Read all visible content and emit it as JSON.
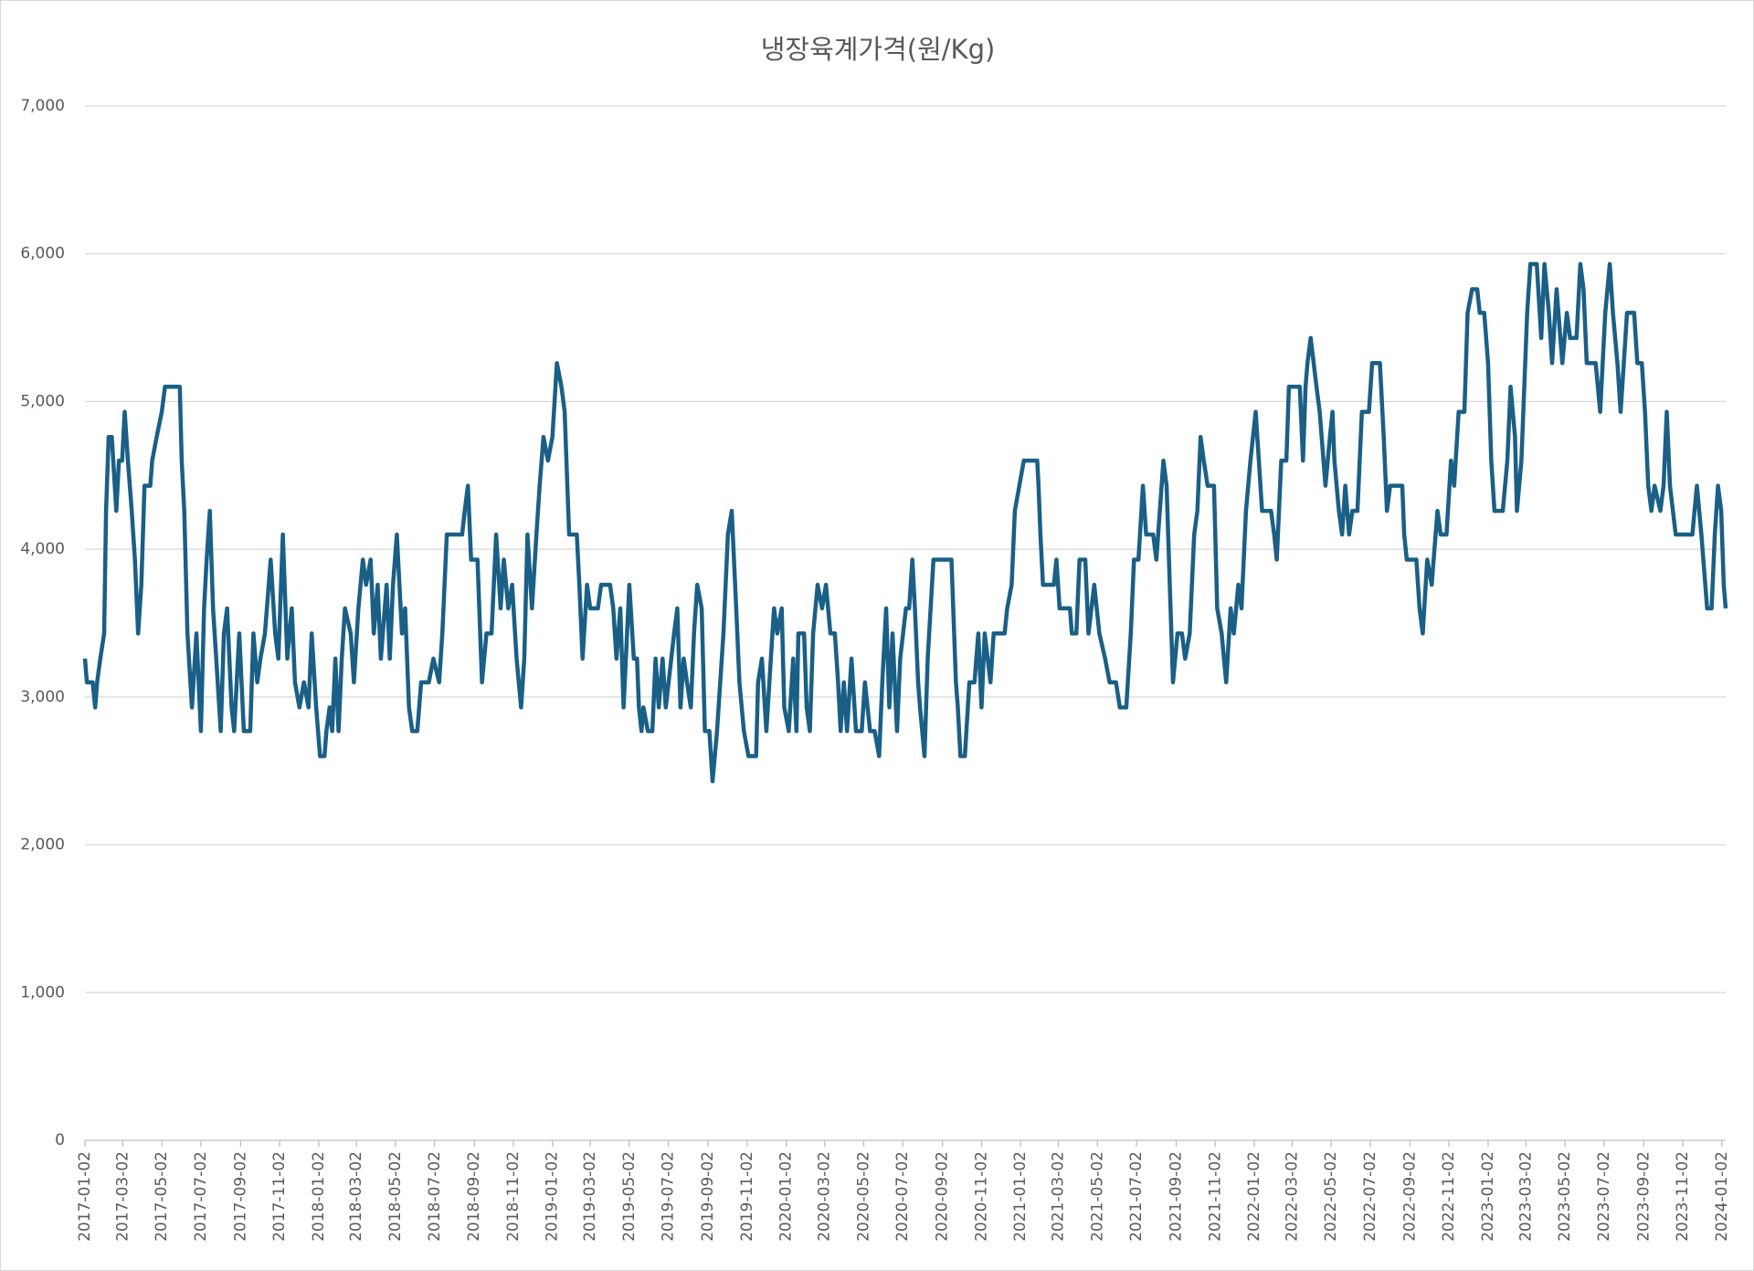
{
  "chart_data": {
    "type": "line",
    "title": "냉장육계가격(원/Kg)",
    "color": "#1a5f86",
    "grid": true,
    "xlim": [
      "2017-01-02",
      "2024-01-08"
    ],
    "ylim": [
      0,
      7000
    ],
    "yticks": [
      0,
      {
        "value": 1000,
        "label": "1,000"
      },
      {
        "value": 2000,
        "label": "2,000"
      },
      {
        "value": 3000,
        "label": "3,000"
      },
      {
        "value": 4000,
        "label": "4,000"
      },
      {
        "value": 5000,
        "label": "5,000"
      },
      {
        "value": 6000,
        "label": "6,000"
      },
      {
        "value": 7000,
        "label": "7,000"
      }
    ],
    "xticks": [
      "2017-01-02",
      "2017-03-02",
      "2017-05-02",
      "2017-07-02",
      "2017-09-02",
      "2017-11-02",
      "2018-01-02",
      "2018-03-02",
      "2018-05-02",
      "2018-07-02",
      "2018-09-02",
      "2018-11-02",
      "2019-01-02",
      "2019-03-02",
      "2019-05-02",
      "2019-07-02",
      "2019-09-02",
      "2019-11-02",
      "2020-01-02",
      "2020-03-02",
      "2020-05-02",
      "2020-07-02",
      "2020-09-02",
      "2020-11-02",
      "2021-01-02",
      "2021-03-02",
      "2021-05-02",
      "2021-07-02",
      "2021-09-02",
      "2021-11-02",
      "2022-01-02",
      "2022-03-02",
      "2022-05-02",
      "2022-07-02",
      "2022-09-02",
      "2022-11-02",
      "2023-01-02",
      "2023-03-02",
      "2023-05-02",
      "2023-07-02",
      "2023-09-02",
      "2023-11-02",
      "2024-01-02"
    ],
    "x": [
      "2017-01-02",
      "2017-01-05",
      "2017-01-14",
      "2017-01-18",
      "2017-01-21",
      "2017-01-26",
      "2017-02-01",
      "2017-02-04",
      "2017-02-08",
      "2017-02-13",
      "2017-02-20",
      "2017-02-24",
      "2017-03-01",
      "2017-03-05",
      "2017-03-10",
      "2017-03-16",
      "2017-03-21",
      "2017-03-26",
      "2017-03-31",
      "2017-04-05",
      "2017-04-14",
      "2017-04-17",
      "2017-04-24",
      "2017-05-02",
      "2017-05-07",
      "2017-05-30",
      "2017-06-02",
      "2017-06-06",
      "2017-06-11",
      "2017-06-18",
      "2017-06-25",
      "2017-07-02",
      "2017-07-07",
      "2017-07-11",
      "2017-07-16",
      "2017-07-21",
      "2017-07-26",
      "2017-08-02",
      "2017-08-07",
      "2017-08-12",
      "2017-08-19",
      "2017-08-23",
      "2017-08-31",
      "2017-09-07",
      "2017-09-17",
      "2017-09-22",
      "2017-09-28",
      "2017-10-03",
      "2017-10-10",
      "2017-10-19",
      "2017-10-26",
      "2017-10-31",
      "2017-11-07",
      "2017-11-14",
      "2017-11-21",
      "2017-11-26",
      "2017-12-03",
      "2017-12-10",
      "2017-12-17",
      "2017-12-22",
      "2017-12-29",
      "2018-01-04",
      "2018-01-11",
      "2018-01-14",
      "2018-01-19",
      "2018-01-23",
      "2018-01-28",
      "2018-02-02",
      "2018-02-07",
      "2018-02-12",
      "2018-02-21",
      "2018-02-26",
      "2018-03-05",
      "2018-03-12",
      "2018-03-17",
      "2018-03-24",
      "2018-03-29",
      "2018-04-04",
      "2018-04-09",
      "2018-04-18",
      "2018-04-23",
      "2018-04-28",
      "2018-05-04",
      "2018-05-12",
      "2018-05-17",
      "2018-05-23",
      "2018-05-28",
      "2018-06-05",
      "2018-06-11",
      "2018-06-23",
      "2018-06-30",
      "2018-07-09",
      "2018-07-14",
      "2018-07-21",
      "2018-08-14",
      "2018-08-18",
      "2018-08-23",
      "2018-08-28",
      "2018-09-07",
      "2018-09-14",
      "2018-09-21",
      "2018-09-29",
      "2018-10-06",
      "2018-10-13",
      "2018-10-18",
      "2018-10-25",
      "2018-10-31",
      "2018-11-07",
      "2018-11-14",
      "2018-11-19",
      "2018-11-24",
      "2018-12-01",
      "2018-12-08",
      "2018-12-13",
      "2018-12-19",
      "2018-12-26",
      "2019-01-02",
      "2019-01-09",
      "2019-01-16",
      "2019-01-21",
      "2019-01-28",
      "2019-02-09",
      "2019-02-13",
      "2019-02-18",
      "2019-02-25",
      "2019-03-02",
      "2019-03-14",
      "2019-03-19",
      "2019-04-02",
      "2019-04-07",
      "2019-04-12",
      "2019-04-18",
      "2019-04-23",
      "2019-05-02",
      "2019-05-09",
      "2019-05-14",
      "2019-05-17",
      "2019-05-21",
      "2019-05-24",
      "2019-05-31",
      "2019-06-07",
      "2019-06-12",
      "2019-06-17",
      "2019-06-23",
      "2019-06-28",
      "2019-07-11",
      "2019-07-16",
      "2019-07-21",
      "2019-07-26",
      "2019-07-31",
      "2019-08-06",
      "2019-08-11",
      "2019-08-16",
      "2019-08-23",
      "2019-08-28",
      "2019-09-04",
      "2019-09-09",
      "2019-09-16",
      "2019-09-21",
      "2019-09-26",
      "2019-10-03",
      "2019-10-09",
      "2019-10-16",
      "2019-10-21",
      "2019-10-28",
      "2019-11-04",
      "2019-11-16",
      "2019-11-19",
      "2019-11-25",
      "2019-12-02",
      "2019-12-09",
      "2019-12-14",
      "2019-12-19",
      "2019-12-26",
      "2019-12-30",
      "2020-01-06",
      "2020-01-13",
      "2020-01-18",
      "2020-01-21",
      "2020-01-30",
      "2020-02-03",
      "2020-02-08",
      "2020-02-13",
      "2020-02-20",
      "2020-02-27",
      "2020-03-04",
      "2020-03-11",
      "2020-03-18",
      "2020-03-23",
      "2020-03-27",
      "2020-04-01",
      "2020-04-06",
      "2020-04-13",
      "2020-04-20",
      "2020-04-29",
      "2020-05-04",
      "2020-05-12",
      "2020-05-19",
      "2020-05-26",
      "2020-05-31",
      "2020-06-06",
      "2020-06-11",
      "2020-06-16",
      "2020-06-23",
      "2020-06-28",
      "2020-07-07",
      "2020-07-12",
      "2020-07-17",
      "2020-07-21",
      "2020-07-26",
      "2020-07-29",
      "2020-08-05",
      "2020-08-10",
      "2020-08-19",
      "2020-09-16",
      "2020-09-23",
      "2020-09-26",
      "2020-09-30",
      "2020-10-07",
      "2020-10-14",
      "2020-10-22",
      "2020-10-28",
      "2020-11-02",
      "2020-11-07",
      "2020-11-16",
      "2020-11-21",
      "2020-12-08",
      "2020-12-12",
      "2020-12-19",
      "2020-12-24",
      "2020-12-31",
      "2021-01-07",
      "2021-01-28",
      "2021-01-30",
      "2021-02-02",
      "2021-02-06",
      "2021-02-23",
      "2021-02-27",
      "2021-03-04",
      "2021-03-20",
      "2021-03-23",
      "2021-03-30",
      "2021-04-04",
      "2021-04-13",
      "2021-04-18",
      "2021-04-27",
      "2021-05-05",
      "2021-05-14",
      "2021-05-21",
      "2021-05-31",
      "2021-06-06",
      "2021-06-16",
      "2021-06-23",
      "2021-06-28",
      "2021-07-05",
      "2021-07-12",
      "2021-07-17",
      "2021-07-28",
      "2021-08-02",
      "2021-08-13",
      "2021-08-18",
      "2021-08-23",
      "2021-08-28",
      "2021-09-04",
      "2021-09-11",
      "2021-09-16",
      "2021-09-23",
      "2021-09-30",
      "2021-10-05",
      "2021-10-10",
      "2021-10-15",
      "2021-10-21",
      "2021-10-31",
      "2021-11-05",
      "2021-11-12",
      "2021-11-19",
      "2021-11-26",
      "2021-12-01",
      "2021-12-08",
      "2021-12-13",
      "2021-12-20",
      "2021-12-27",
      "2022-01-04",
      "2022-01-09",
      "2022-01-14",
      "2022-01-28",
      "2022-02-02",
      "2022-02-06",
      "2022-02-13",
      "2022-02-21",
      "2022-02-25",
      "2022-03-14",
      "2022-03-19",
      "2022-03-23",
      "2022-03-26",
      "2022-03-31",
      "2022-04-09",
      "2022-04-14",
      "2022-04-23",
      "2022-04-30",
      "2022-05-04",
      "2022-05-07",
      "2022-05-14",
      "2022-05-19",
      "2022-05-24",
      "2022-05-30",
      "2022-06-04",
      "2022-06-12",
      "2022-06-19",
      "2022-06-30",
      "2022-07-05",
      "2022-07-17",
      "2022-07-23",
      "2022-07-28",
      "2022-08-02",
      "2022-08-21",
      "2022-08-24",
      "2022-08-28",
      "2022-09-12",
      "2022-09-17",
      "2022-09-22",
      "2022-09-29",
      "2022-10-06",
      "2022-10-15",
      "2022-10-20",
      "2022-10-29",
      "2022-11-05",
      "2022-11-10",
      "2022-11-17",
      "2022-11-26",
      "2022-12-01",
      "2022-12-08",
      "2022-12-16",
      "2022-12-20",
      "2022-12-27",
      "2023-01-02",
      "2023-01-07",
      "2023-01-12",
      "2023-01-25",
      "2023-02-01",
      "2023-02-06",
      "2023-02-13",
      "2023-02-16",
      "2023-02-23",
      "2023-03-04",
      "2023-03-09",
      "2023-03-19",
      "2023-03-26",
      "2023-03-31",
      "2023-04-07",
      "2023-04-12",
      "2023-04-19",
      "2023-04-28",
      "2023-05-05",
      "2023-05-10",
      "2023-05-20",
      "2023-05-26",
      "2023-05-31",
      "2023-06-05",
      "2023-06-19",
      "2023-06-26",
      "2023-07-04",
      "2023-07-11",
      "2023-07-16",
      "2023-07-23",
      "2023-07-28",
      "2023-08-02",
      "2023-08-07",
      "2023-08-18",
      "2023-08-23",
      "2023-08-30",
      "2023-09-04",
      "2023-09-09",
      "2023-09-14",
      "2023-09-19",
      "2023-09-28",
      "2023-10-03",
      "2023-10-08",
      "2023-10-13",
      "2023-10-22",
      "2023-11-17",
      "2023-11-24",
      "2023-12-01",
      "2023-12-10",
      "2023-12-17",
      "2023-12-22",
      "2023-12-27",
      "2024-01-01",
      "2024-01-05",
      "2024-01-08"
    ],
    "values": [
      3260,
      3100,
      3100,
      2930,
      3100,
      3260,
      3430,
      4260,
      4760,
      4760,
      4260,
      4600,
      4600,
      4930,
      4600,
      4260,
      3930,
      3430,
      3760,
      4430,
      4430,
      4600,
      4760,
      4930,
      5100,
      5100,
      4600,
      4260,
      3430,
      2930,
      3430,
      2770,
      3600,
      3930,
      4260,
      3600,
      3260,
      2770,
      3430,
      3600,
      2930,
      2770,
      3430,
      2770,
      2770,
      3430,
      3100,
      3260,
      3430,
      3930,
      3430,
      3260,
      4100,
      3260,
      3600,
      3100,
      2930,
      3100,
      2930,
      3430,
      2930,
      2600,
      2600,
      2770,
      2930,
      2770,
      3260,
      2770,
      3260,
      3600,
      3430,
      3100,
      3600,
      3930,
      3760,
      3930,
      3430,
      3760,
      3260,
      3760,
      3260,
      3760,
      4100,
      3430,
      3600,
      2930,
      2770,
      2770,
      3100,
      3100,
      3260,
      3100,
      3430,
      4100,
      4100,
      4260,
      4430,
      3930,
      3930,
      3100,
      3430,
      3430,
      4100,
      3600,
      3930,
      3600,
      3760,
      3260,
      2930,
      3260,
      4100,
      3600,
      4100,
      4430,
      4760,
      4600,
      4760,
      5260,
      5100,
      4930,
      4100,
      4100,
      3760,
      3260,
      3760,
      3600,
      3600,
      3760,
      3760,
      3600,
      3260,
      3600,
      2930,
      3760,
      3260,
      3260,
      2930,
      2770,
      2930,
      2770,
      2770,
      3260,
      2930,
      3260,
      2930,
      3430,
      3600,
      2930,
      3260,
      3100,
      2930,
      3430,
      3760,
      3600,
      2770,
      2770,
      2430,
      2770,
      3100,
      3430,
      4100,
      4260,
      3600,
      3100,
      2770,
      2600,
      2600,
      3100,
      3260,
      2770,
      3260,
      3600,
      3430,
      3600,
      2930,
      2770,
      3260,
      2770,
      3430,
      3430,
      2930,
      2770,
      3430,
      3760,
      3600,
      3760,
      3430,
      3430,
      3100,
      2770,
      3100,
      2770,
      3260,
      2770,
      2770,
      3100,
      2770,
      2770,
      2600,
      3100,
      3600,
      2930,
      3430,
      2770,
      3260,
      3600,
      3600,
      3930,
      3600,
      3100,
      2930,
      2600,
      3260,
      3930,
      3930,
      3100,
      2930,
      2600,
      2600,
      3100,
      3100,
      3430,
      2930,
      3430,
      3100,
      3430,
      3430,
      3600,
      3760,
      4260,
      4430,
      4600,
      4600,
      4430,
      4100,
      3760,
      3760,
      3930,
      3600,
      3600,
      3430,
      3430,
      3930,
      3930,
      3430,
      3760,
      3430,
      3260,
      3100,
      3100,
      2930,
      2930,
      3430,
      3930,
      3930,
      4430,
      4100,
      4100,
      3930,
      4600,
      4430,
      3760,
      3100,
      3430,
      3430,
      3260,
      3430,
      4100,
      4260,
      4760,
      4600,
      4430,
      4430,
      3600,
      3430,
      3100,
      3600,
      3430,
      3760,
      3600,
      4260,
      4600,
      4930,
      4600,
      4260,
      4260,
      4100,
      3930,
      4600,
      4600,
      5100,
      5100,
      4600,
      5100,
      5260,
      5430,
      5100,
      4930,
      4430,
      4760,
      4930,
      4600,
      4260,
      4100,
      4430,
      4100,
      4260,
      4260,
      4930,
      4930,
      5260,
      5260,
      4760,
      4260,
      4430,
      4430,
      4100,
      3930,
      3930,
      3600,
      3430,
      3930,
      3760,
      4260,
      4100,
      4100,
      4600,
      4430,
      4930,
      4930,
      5600,
      5760,
      5760,
      5600,
      5600,
      5260,
      4600,
      4260,
      4260,
      4600,
      5100,
      4760,
      4260,
      4600,
      5600,
      5930,
      5930,
      5430,
      5930,
      5600,
      5260,
      5760,
      5260,
      5600,
      5430,
      5430,
      5930,
      5760,
      5260,
      5260,
      4930,
      5600,
      5930,
      5600,
      5260,
      4930,
      5260,
      5600,
      5600,
      5260,
      5260,
      4930,
      4430,
      4260,
      4430,
      4260,
      4430,
      4930,
      4430,
      4100,
      4100,
      4430,
      4100,
      3600,
      3600,
      4100,
      4430,
      4260,
      3760,
      3600
    ]
  }
}
